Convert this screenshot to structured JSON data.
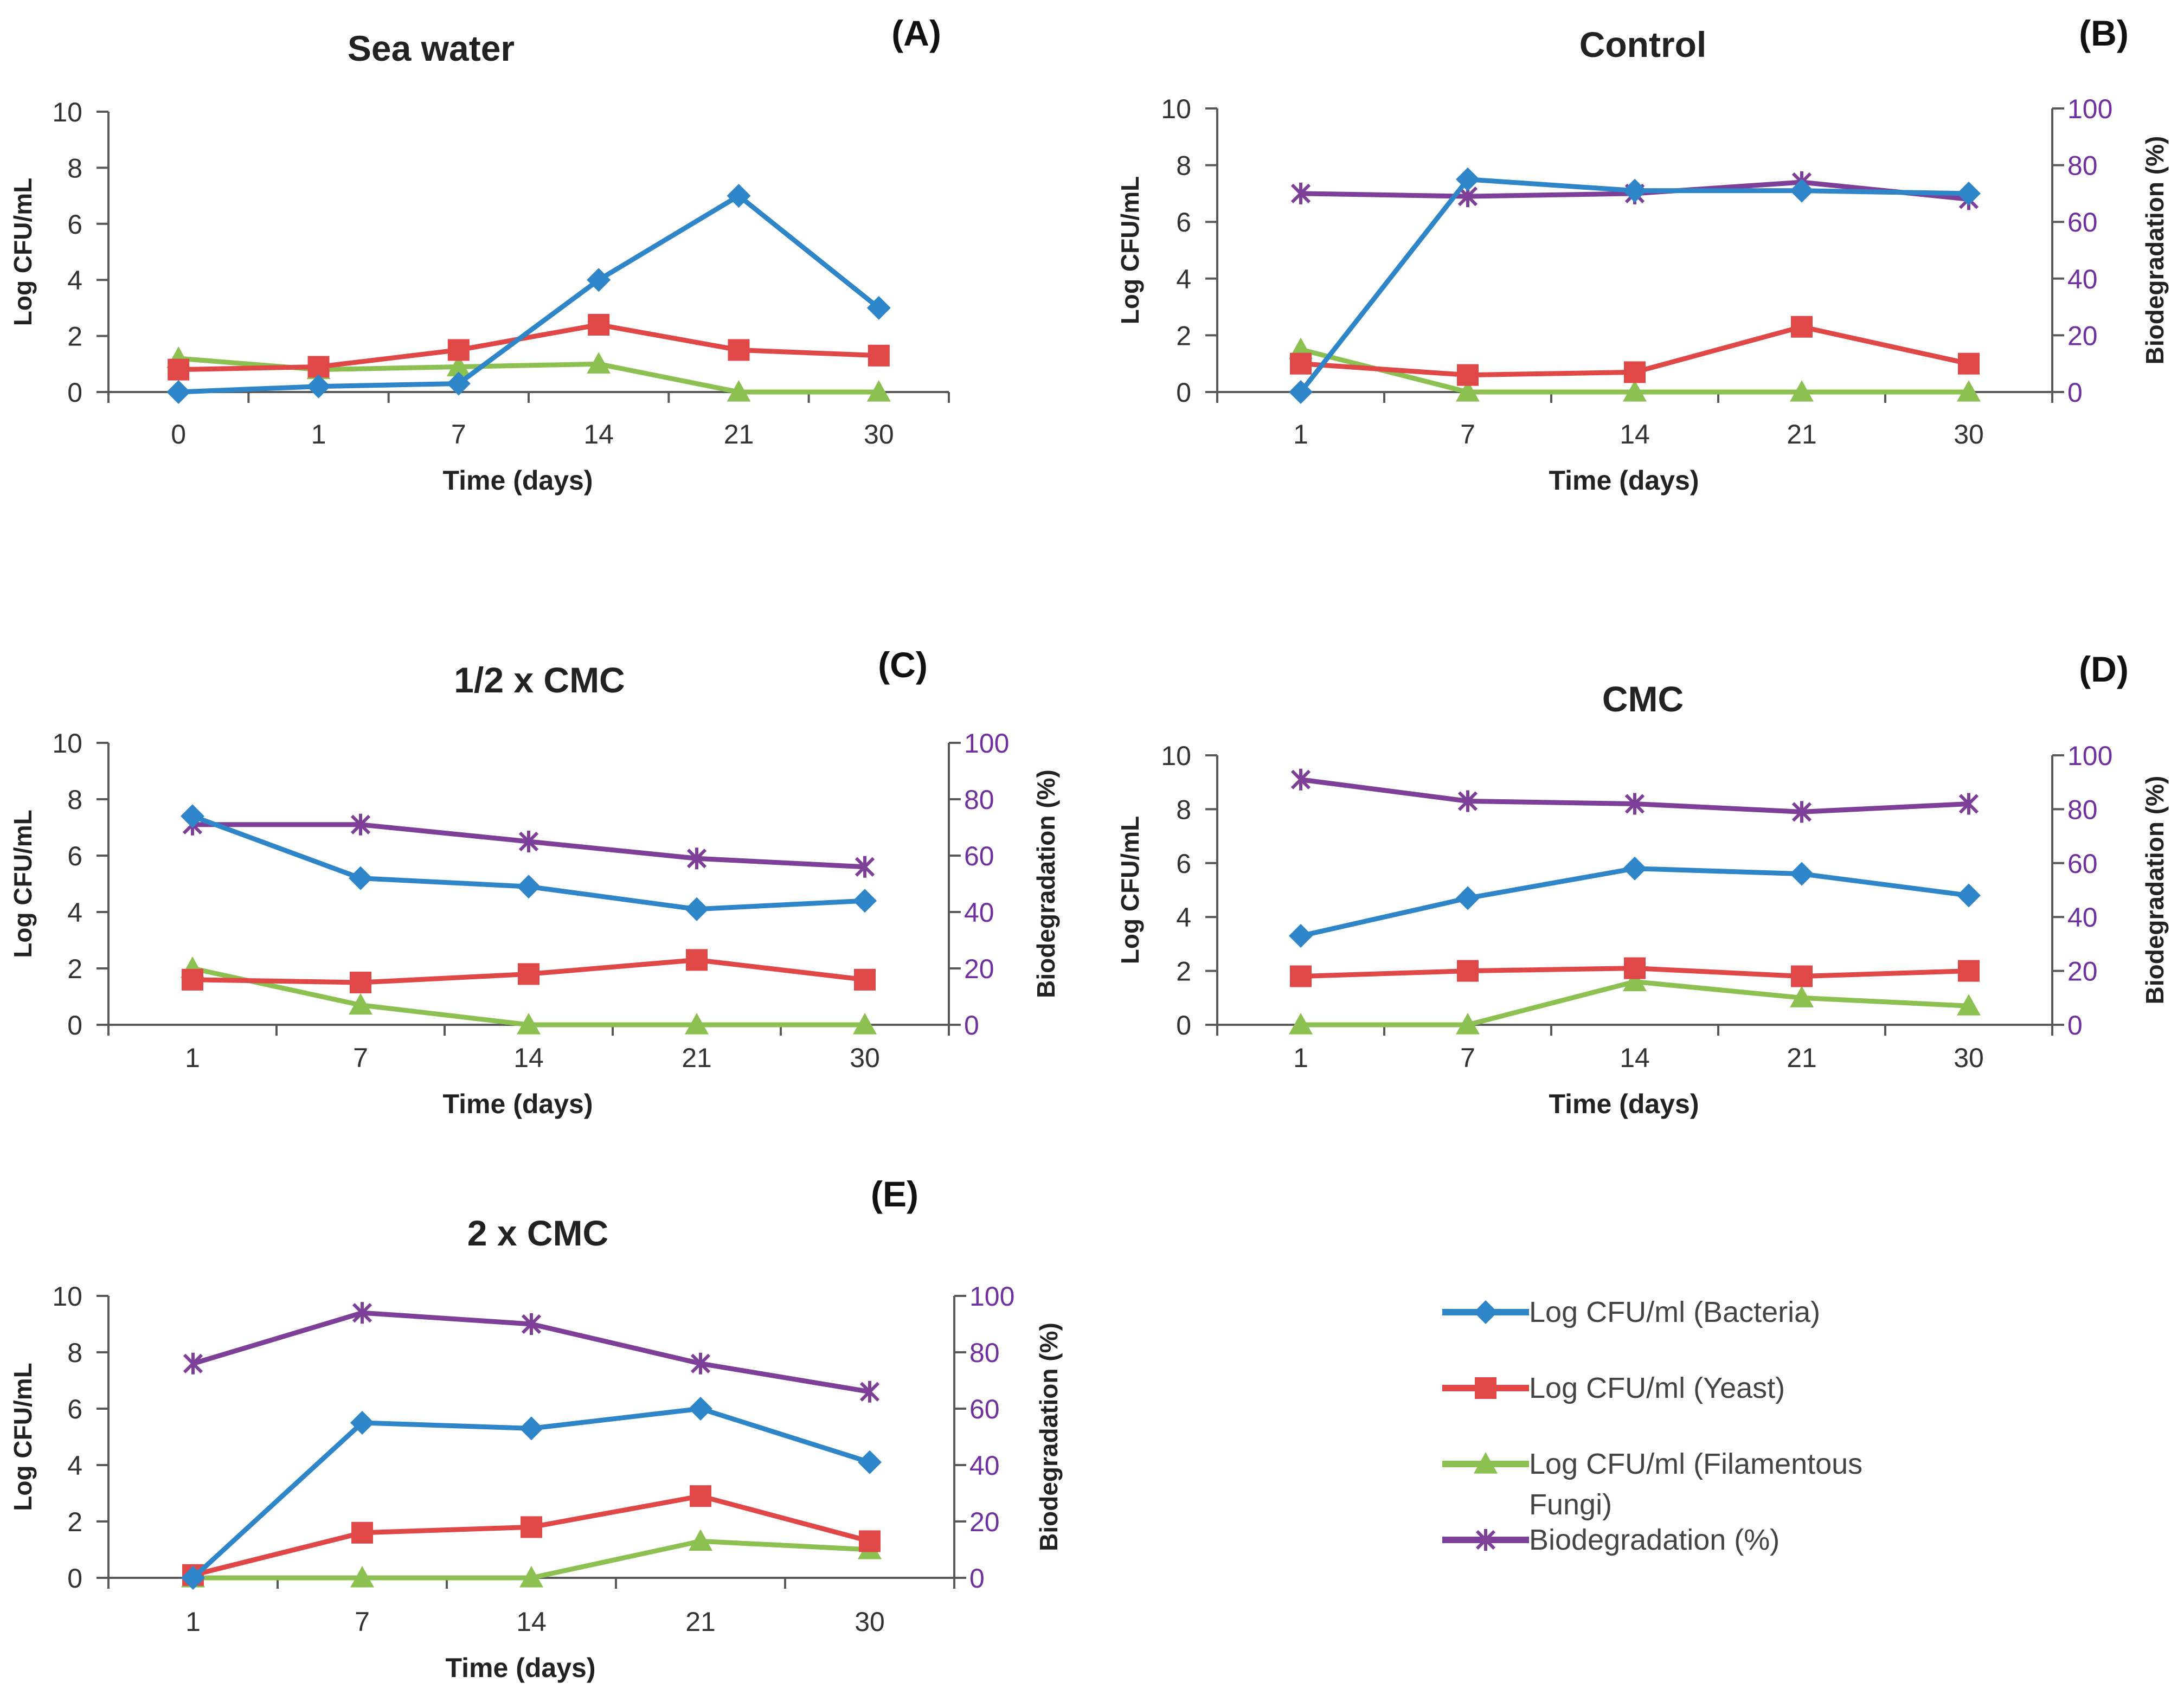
{
  "colors": {
    "bacteria": "#2e86c8",
    "yeast": "#e04848",
    "fungi": "#8cc152",
    "biodegradation": "#7e3f98",
    "axis": "#595959",
    "right_axis": "#7030a0"
  },
  "legend": {
    "items": [
      {
        "key": "bacteria",
        "label_lines": [
          "Log CFU/ml (Bacteria)"
        ],
        "marker": "diamond"
      },
      {
        "key": "yeast",
        "label_lines": [
          "Log CFU/ml (Yeast)"
        ],
        "marker": "square"
      },
      {
        "key": "fungi",
        "label_lines": [
          "Log CFU/ml (Filamentous",
          "Fungi)"
        ],
        "marker": "triangle"
      },
      {
        "key": "biodegradation",
        "label_lines": [
          "Biodegradation (%)"
        ],
        "marker": "x"
      }
    ]
  },
  "chart_data": [
    {
      "panel_label": "(A)",
      "type": "line",
      "title": "Sea water",
      "xlabel": "Time (days)",
      "ylabel": "Log CFU/mL",
      "ylabel_right": null,
      "categories": [
        "0",
        "1",
        "7",
        "14",
        "21",
        "30"
      ],
      "ylim": [
        0,
        10
      ],
      "yticks": [
        0,
        2,
        4,
        6,
        8,
        10
      ],
      "series": [
        {
          "key": "bacteria",
          "name": "Log CFU/ml (Bacteria)",
          "axis": "left",
          "values": [
            0,
            0.2,
            0.3,
            4.0,
            7.0,
            3.0
          ]
        },
        {
          "key": "yeast",
          "name": "Log CFU/ml (Yeast)",
          "axis": "left",
          "values": [
            0.8,
            0.9,
            1.5,
            2.4,
            1.5,
            1.3
          ]
        },
        {
          "key": "fungi",
          "name": "Log CFU/ml (Filamentous Fungi)",
          "axis": "left",
          "values": [
            1.2,
            0.8,
            0.9,
            1.0,
            0,
            0
          ]
        }
      ]
    },
    {
      "panel_label": "(B)",
      "type": "line",
      "title": "Control",
      "xlabel": "Time (days)",
      "ylabel": "Log CFU/mL",
      "ylabel_right": "Biodegradation (%)",
      "categories": [
        "1",
        "7",
        "14",
        "21",
        "30"
      ],
      "ylim": [
        0,
        10
      ],
      "yticks": [
        0,
        2,
        4,
        6,
        8,
        10
      ],
      "ylim_right": [
        0,
        100
      ],
      "yticks_right": [
        0,
        20,
        40,
        60,
        80,
        100
      ],
      "series": [
        {
          "key": "bacteria",
          "name": "Log CFU/ml (Bacteria)",
          "axis": "left",
          "values": [
            0,
            7.5,
            7.1,
            7.1,
            7.0
          ]
        },
        {
          "key": "yeast",
          "name": "Log CFU/ml (Yeast)",
          "axis": "left",
          "values": [
            1.0,
            0.6,
            0.7,
            2.3,
            1.0
          ]
        },
        {
          "key": "fungi",
          "name": "Log CFU/ml (Filamentous Fungi)",
          "axis": "left",
          "values": [
            1.5,
            0,
            0,
            0,
            0
          ]
        },
        {
          "key": "biodegradation",
          "name": "Biodegradation (%)",
          "axis": "right",
          "values": [
            70,
            69,
            70,
            74,
            68
          ]
        }
      ]
    },
    {
      "panel_label": "(C)",
      "type": "line",
      "title": "1/2 x CMC",
      "xlabel": "Time (days)",
      "ylabel": "Log CFU/mL",
      "ylabel_right": "Biodegradation (%)",
      "categories": [
        "1",
        "7",
        "14",
        "21",
        "30"
      ],
      "ylim": [
        0,
        10
      ],
      "yticks": [
        0,
        2,
        4,
        6,
        8,
        10
      ],
      "ylim_right": [
        0,
        100
      ],
      "yticks_right": [
        0,
        20,
        40,
        60,
        80,
        100
      ],
      "series": [
        {
          "key": "bacteria",
          "name": "Log CFU/ml (Bacteria)",
          "axis": "left",
          "values": [
            7.4,
            5.2,
            4.9,
            4.1,
            4.4
          ]
        },
        {
          "key": "yeast",
          "name": "Log CFU/ml (Yeast)",
          "axis": "left",
          "values": [
            1.6,
            1.5,
            1.8,
            2.3,
            1.6
          ]
        },
        {
          "key": "fungi",
          "name": "Log CFU/ml (Filamentous Fungi)",
          "axis": "left",
          "values": [
            2.0,
            0.7,
            0,
            0,
            0
          ]
        },
        {
          "key": "biodegradation",
          "name": "Biodegradation (%)",
          "axis": "right",
          "values": [
            71,
            71,
            65,
            59,
            56
          ]
        }
      ]
    },
    {
      "panel_label": "(D)",
      "type": "line",
      "title": "CMC",
      "xlabel": "Time (days)",
      "ylabel": "Log CFU/mL",
      "ylabel_right": "Biodegradation (%)",
      "categories": [
        "1",
        "7",
        "14",
        "21",
        "30"
      ],
      "ylim": [
        0,
        10
      ],
      "yticks": [
        0,
        2,
        4,
        6,
        8,
        10
      ],
      "ylim_right": [
        0,
        100
      ],
      "yticks_right": [
        0,
        20,
        40,
        60,
        80,
        100
      ],
      "series": [
        {
          "key": "bacteria",
          "name": "Log CFU/ml (Bacteria)",
          "axis": "left",
          "values": [
            3.3,
            4.7,
            5.8,
            5.6,
            4.8
          ]
        },
        {
          "key": "yeast",
          "name": "Log CFU/ml (Yeast)",
          "axis": "left",
          "values": [
            1.8,
            2.0,
            2.1,
            1.8,
            2.0
          ]
        },
        {
          "key": "fungi",
          "name": "Log CFU/ml (Filamentous Fungi)",
          "axis": "left",
          "values": [
            0,
            0,
            1.6,
            1.0,
            0.7
          ]
        },
        {
          "key": "biodegradation",
          "name": "Biodegradation (%)",
          "axis": "right",
          "values": [
            91,
            83,
            82,
            79,
            82
          ]
        }
      ]
    },
    {
      "panel_label": "(E)",
      "type": "line",
      "title": "2 x CMC",
      "xlabel": "Time (days)",
      "ylabel": "Log CFU/mL",
      "ylabel_right": "Biodegradation (%)",
      "categories": [
        "1",
        "7",
        "14",
        "21",
        "30"
      ],
      "ylim": [
        0,
        10
      ],
      "yticks": [
        0,
        2,
        4,
        6,
        8,
        10
      ],
      "ylim_right": [
        0,
        100
      ],
      "yticks_right": [
        0,
        20,
        40,
        60,
        80,
        100
      ],
      "series": [
        {
          "key": "bacteria",
          "name": "Log CFU/ml (Bacteria)",
          "axis": "left",
          "values": [
            0,
            5.5,
            5.3,
            6.0,
            4.1
          ]
        },
        {
          "key": "yeast",
          "name": "Log CFU/ml (Yeast)",
          "axis": "left",
          "values": [
            0.1,
            1.6,
            1.8,
            2.9,
            1.3
          ]
        },
        {
          "key": "fungi",
          "name": "Log CFU/ml (Filamentous Fungi)",
          "axis": "left",
          "values": [
            0,
            0,
            0,
            1.3,
            1.0
          ]
        },
        {
          "key": "biodegradation",
          "name": "Biodegradation (%)",
          "axis": "right",
          "values": [
            76,
            94,
            90,
            76,
            66
          ]
        }
      ]
    }
  ]
}
